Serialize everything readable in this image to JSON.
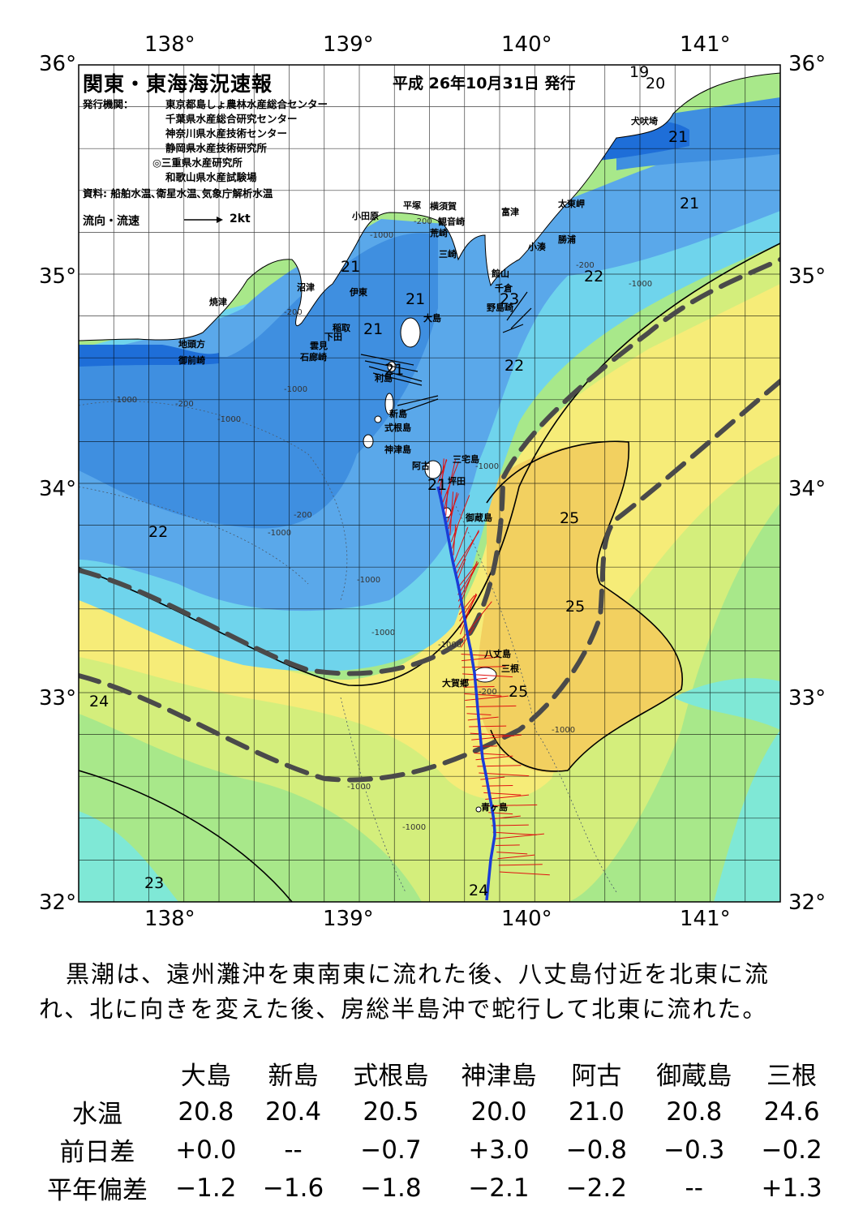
{
  "map": {
    "title": "関東・東海海況速報",
    "date": "平成 26年10月31日 発行",
    "issuer_label": "発行機関：",
    "institutions": [
      "東京都島しょ農林水産総合センター",
      "千葉県水産総合研究センター",
      "神奈川県水産技術センター",
      "静岡県水産技術研究所",
      "◎三重県水産研究所",
      "和歌山県水産試験場"
    ],
    "source": "資料: 船舶水温､衛星水温､気象庁解析水温",
    "legend_label": "流向・流速",
    "legend_value": "2kt",
    "lon_labels": [
      "138°",
      "139°",
      "140°",
      "141°"
    ],
    "lat_labels": [
      "36°",
      "35°",
      "34°",
      "33°",
      "32°"
    ],
    "lon_range": [
      137.5,
      141.5
    ],
    "lat_range": [
      32.0,
      36.0
    ],
    "temp_labels": [
      "19",
      "20",
      "21",
      "21",
      "21",
      "21",
      "21",
      "21",
      "21",
      "22",
      "22",
      "22",
      "23",
      "25",
      "25",
      "25",
      "24",
      "24",
      "23"
    ],
    "depth_labels": [
      "-200",
      "-1000",
      "-200",
      "-1000",
      "-200",
      "-1000",
      "-200",
      "-1000",
      "-1000",
      "-200",
      "-1000",
      "-1000",
      "-1000",
      "-1000",
      "-1000",
      "-200",
      "-1000",
      "-1000",
      "-1000"
    ],
    "places": [
      "犬吠埼",
      "太東岬",
      "勝浦",
      "小湊",
      "富津",
      "館山",
      "千倉",
      "野島崎",
      "横須賀",
      "観音崎",
      "平塚",
      "荒崎",
      "三崎",
      "小田原",
      "沼津",
      "伊東",
      "焼津",
      "稲取",
      "下田",
      "雲見",
      "石廊崎",
      "地頭方",
      "御前崎",
      "大島",
      "利島",
      "新島",
      "式根島",
      "神津島",
      "三宅島",
      "阿古",
      "坪田",
      "御蔵島",
      "八丈島",
      "三根",
      "大賀郷",
      "青ヶ島"
    ],
    "colors": {
      "land": "#ffffff",
      "coast_deep": "#1e6ed8",
      "blue1": "#3f8fe0",
      "blue2": "#5aa8ea",
      "cyan": "#6fd4ec",
      "aqua": "#7fe8d6",
      "green": "#a8e88a",
      "yellowgreen": "#d4ee7c",
      "yellow": "#f6ec78",
      "orange": "#f2d060",
      "axis_line": "#1a3cd8",
      "vector": "#e01010",
      "path": "#4a4a4a"
    }
  },
  "summary": "黒潮は、遠州灘沖を東南東に流れた後、八丈島付近を北東に流れ、北に向きを変えた後、房総半島沖で蛇行して北東に流れた。",
  "observations": {
    "stations": [
      "大島",
      "新島",
      "式根島",
      "神津島",
      "阿古",
      "御蔵島",
      "三根"
    ],
    "rows": [
      {
        "label": "水温",
        "values": [
          "20.8",
          "20.4",
          "20.5",
          "20.0",
          "21.0",
          "20.8",
          "24.6"
        ]
      },
      {
        "label": "前日差",
        "values": [
          "+0.0",
          "--",
          "−0.7",
          "+3.0",
          "−0.8",
          "−0.3",
          "−0.2"
        ]
      },
      {
        "label": "平年偏差",
        "values": [
          "−1.2",
          "−1.6",
          "−1.8",
          "−2.1",
          "−2.2",
          "--",
          "+1.3"
        ]
      }
    ]
  }
}
